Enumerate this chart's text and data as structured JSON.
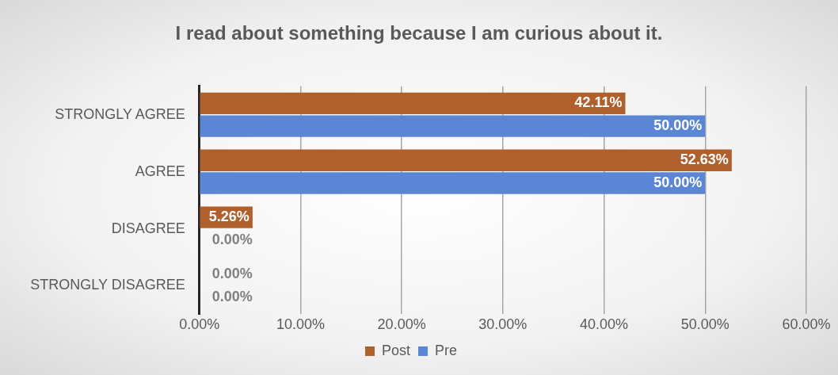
{
  "chart_data": {
    "type": "bar",
    "orientation": "horizontal",
    "title": "I read about something because I am curious about it.",
    "categories": [
      "STRONGLY AGREE",
      "AGREE",
      "DISAGREE",
      "STRONGLY DISAGREE"
    ],
    "series": [
      {
        "name": "Post",
        "color": "#b0602c",
        "values": [
          42.11,
          52.63,
          5.26,
          0
        ],
        "value_labels": [
          "42.11%",
          "52.63%",
          "5.26%",
          "0.00%"
        ]
      },
      {
        "name": "Pre",
        "color": "#5a86d5",
        "values": [
          50,
          50,
          0,
          0
        ],
        "value_labels": [
          "50.00%",
          "50.00%",
          "0.00%",
          "0.00%"
        ]
      }
    ],
    "xlim": [
      0,
      60
    ],
    "xticks": [
      {
        "value": 0,
        "label": "0.00%"
      },
      {
        "value": 10,
        "label": "10.00%"
      },
      {
        "value": 20,
        "label": "20.00%"
      },
      {
        "value": 30,
        "label": "30.00%"
      },
      {
        "value": 40,
        "label": "40.00%"
      },
      {
        "value": 50,
        "label": "50.00%"
      },
      {
        "value": 60,
        "label": "60.00%"
      }
    ],
    "grid": "x",
    "legend": "bottom"
  }
}
